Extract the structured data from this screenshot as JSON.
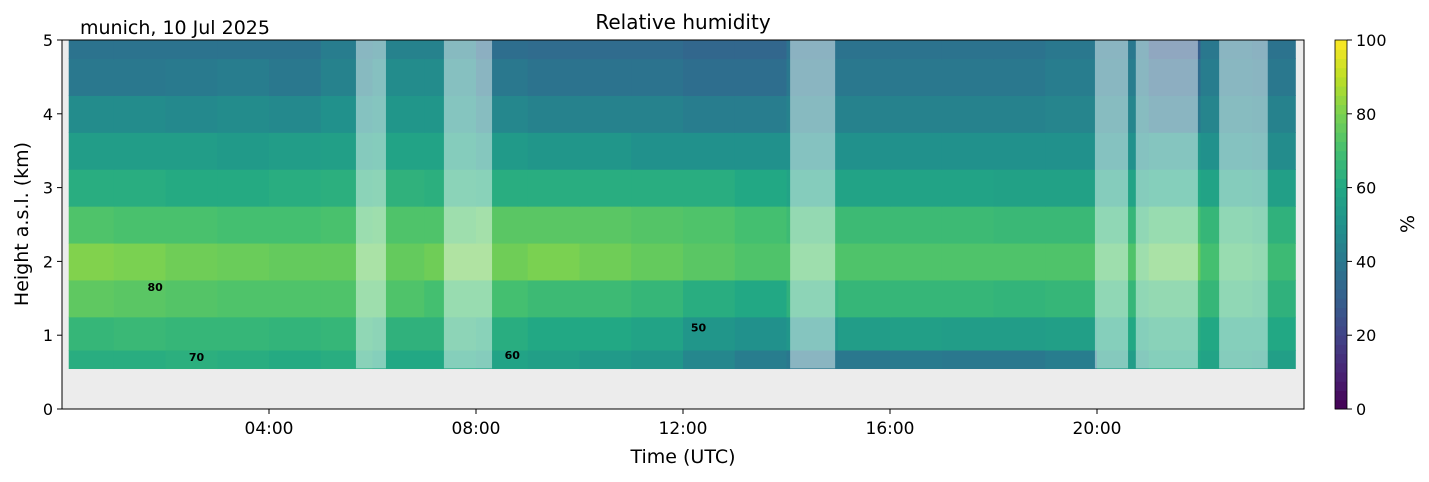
{
  "chart_data": {
    "type": "heatmap",
    "title": "Relative humidity",
    "subtitle": "munich, 10 Jul 2025",
    "xlabel": "Time (UTC)",
    "ylabel": "Height a.s.l. (km)",
    "xlim_hours": [
      0,
      24
    ],
    "ylim": [
      0,
      5
    ],
    "x_ticks": [
      "04:00",
      "08:00",
      "12:00",
      "16:00",
      "20:00"
    ],
    "x_tick_hours": [
      4,
      8,
      12,
      16,
      20
    ],
    "y_ticks": [
      "0",
      "1",
      "2",
      "3",
      "4",
      "5"
    ],
    "colorbar": {
      "label": "%",
      "range": [
        0,
        100
      ],
      "ticks": [
        "0",
        "20",
        "40",
        "60",
        "80",
        "100"
      ],
      "colormap": "viridis"
    },
    "data_start_hour": 0.13,
    "data_end_hour": 23.83,
    "data_bottom_km": 0.55,
    "times_hour": [
      0.5,
      1.5,
      2.5,
      3.5,
      4.5,
      5.5,
      6.5,
      7.5,
      8.5,
      9.5,
      10.5,
      11.5,
      12.5,
      13.5,
      14.5,
      15.5,
      16.5,
      17.5,
      18.5,
      19.5,
      20.5,
      21.5,
      22.5,
      23.5
    ],
    "heights_km": [
      0.6,
      1.0,
      1.5,
      2.0,
      2.5,
      3.0,
      3.5,
      4.0,
      4.5,
      5.0
    ],
    "rh_percent": [
      [
        62,
        62,
        63,
        62,
        61,
        62,
        60,
        60,
        58,
        56,
        54,
        52,
        46,
        42,
        40,
        40,
        41,
        40,
        40,
        42,
        55,
        60,
        58,
        56
      ],
      [
        66,
        67,
        66,
        66,
        65,
        66,
        64,
        64,
        62,
        60,
        60,
        58,
        52,
        50,
        52,
        55,
        56,
        55,
        55,
        56,
        60,
        62,
        60,
        60
      ],
      [
        75,
        74,
        73,
        72,
        72,
        72,
        72,
        70,
        70,
        68,
        68,
        66,
        62,
        60,
        64,
        66,
        66,
        66,
        65,
        66,
        66,
        68,
        66,
        64
      ],
      [
        81,
        80,
        78,
        77,
        76,
        76,
        76,
        78,
        78,
        80,
        78,
        76,
        74,
        72,
        72,
        72,
        72,
        72,
        72,
        72,
        72,
        76,
        70,
        68
      ],
      [
        72,
        71,
        71,
        70,
        70,
        71,
        72,
        72,
        74,
        74,
        74,
        73,
        72,
        70,
        68,
        68,
        68,
        68,
        67,
        67,
        66,
        70,
        66,
        64
      ],
      [
        62,
        62,
        61,
        61,
        62,
        63,
        64,
        63,
        62,
        62,
        62,
        62,
        62,
        60,
        58,
        58,
        58,
        58,
        57,
        57,
        58,
        60,
        58,
        56
      ],
      [
        55,
        55,
        55,
        54,
        55,
        56,
        58,
        58,
        54,
        52,
        52,
        50,
        50,
        50,
        50,
        50,
        50,
        50,
        50,
        50,
        50,
        52,
        50,
        48
      ],
      [
        48,
        48,
        47,
        48,
        47,
        50,
        52,
        52,
        46,
        44,
        44,
        44,
        42,
        42,
        44,
        44,
        44,
        44,
        44,
        45,
        45,
        40,
        45,
        44
      ],
      [
        40,
        40,
        41,
        42,
        40,
        44,
        48,
        48,
        40,
        38,
        38,
        38,
        36,
        36,
        40,
        40,
        40,
        40,
        40,
        42,
        42,
        35,
        42,
        40
      ],
      [
        38,
        38,
        38,
        38,
        38,
        42,
        44,
        44,
        36,
        35,
        35,
        35,
        33,
        33,
        38,
        38,
        38,
        38,
        38,
        40,
        40,
        30,
        40,
        38
      ]
    ],
    "masked_intervals_hour": [
      [
        5.68,
        6.26
      ],
      [
        7.38,
        8.31
      ],
      [
        14.07,
        14.94
      ],
      [
        19.96,
        20.6
      ],
      [
        20.75,
        21.95
      ],
      [
        22.36,
        23.3
      ]
    ],
    "contour_labels": [
      {
        "text": "80",
        "hour": 1.8,
        "km": 1.6
      },
      {
        "text": "70",
        "hour": 2.6,
        "km": 0.65
      },
      {
        "text": "60",
        "hour": 8.7,
        "km": 0.68
      },
      {
        "text": "50",
        "hour": 12.3,
        "km": 1.05
      }
    ],
    "grid": false
  }
}
